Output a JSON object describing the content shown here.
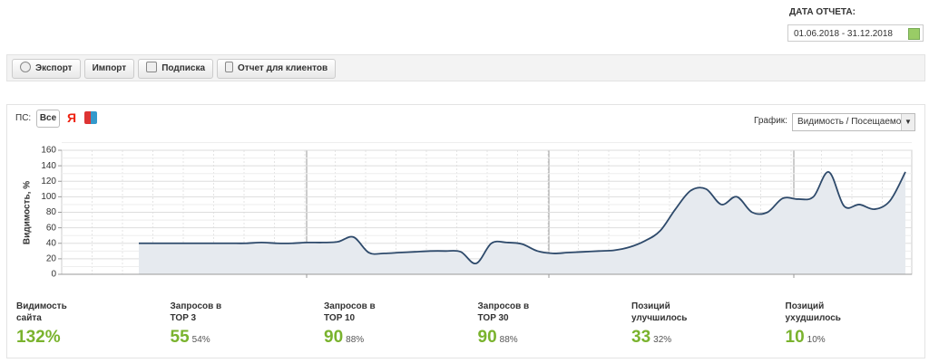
{
  "header": {
    "date_label": "ДАТА ОТЧЕТА:",
    "date_range": "01.06.2018 - 31.12.2018"
  },
  "toolbar": {
    "buttons": [
      "Экспорт",
      "Импорт",
      "Подписка",
      "Отчет для клиентов"
    ]
  },
  "filters": {
    "ps_label": "ПС:",
    "ps_all": "Все",
    "ps_yandex": "Я",
    "graph_label": "График:",
    "graph_select": "Видимость / Посещаемо"
  },
  "chart_data": {
    "type": "area",
    "y_label": "Видимость, %",
    "color": "#2e4a6b",
    "fill": "#e6eaef",
    "grid": true,
    "categories": [
      null,
      null,
      null,
      null,
      null,
      null,
      null,
      null,
      null,
      null,
      null,
      null,
      null,
      null,
      null,
      null,
      null,
      null,
      null,
      null,
      null,
      null,
      null,
      null,
      null,
      null,
      null,
      null,
      null,
      null,
      null,
      null,
      null,
      null,
      null,
      null,
      null,
      null,
      null,
      null,
      null,
      null,
      null,
      null,
      null,
      null,
      null,
      null,
      null,
      null,
      null
    ],
    "values": [
      40,
      40,
      40,
      40,
      40,
      40,
      40,
      40,
      41,
      40,
      40,
      41,
      41,
      42,
      48,
      28,
      27,
      28,
      29,
      30,
      30,
      29,
      14,
      40,
      41,
      39,
      30,
      27,
      28,
      29,
      30,
      31,
      35,
      43,
      56,
      84,
      108,
      110,
      90,
      100,
      80,
      80,
      98,
      97,
      100,
      132,
      88,
      90,
      84,
      95,
      132
    ],
    "ylim": [
      0,
      160
    ],
    "yticks": [
      0,
      20,
      40,
      60,
      80,
      100,
      120,
      140,
      160
    ]
  },
  "stats": [
    {
      "title": [
        "Видимость",
        "сайта"
      ],
      "value": "132%",
      "pct": null
    },
    {
      "title": [
        "Запросов в",
        "TOP 3"
      ],
      "value": "55",
      "pct": "54%"
    },
    {
      "title": [
        "Запросов в",
        "TOP 10"
      ],
      "value": "90",
      "pct": "88%"
    },
    {
      "title": [
        "Запросов в",
        "TOP 30"
      ],
      "value": "90",
      "pct": "88%"
    },
    {
      "title": [
        "Позиций",
        "улучшилось"
      ],
      "value": "33",
      "pct": "32%"
    },
    {
      "title": [
        "Позиций",
        "ухудшилось"
      ],
      "value": "10",
      "pct": "10%"
    }
  ]
}
